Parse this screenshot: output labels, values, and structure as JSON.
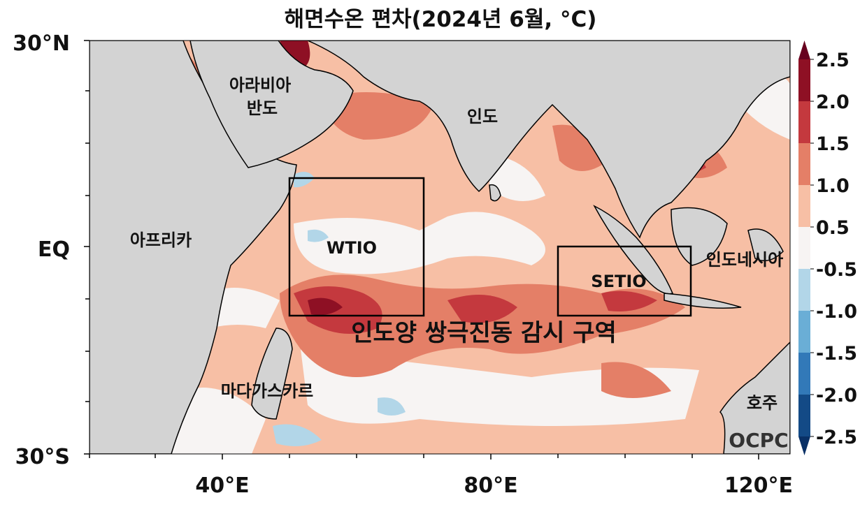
{
  "title": "해면수온 편차(2024년 6월, °C)",
  "axes": {
    "y_ticks": [
      "30°N",
      "EQ",
      "30°S"
    ],
    "x_ticks": [
      "40°E",
      "80°E",
      "120°E"
    ],
    "lon_range": [
      20,
      125
    ],
    "lat_range": [
      -30,
      30
    ]
  },
  "regions": {
    "arabia_line1": "아라비아",
    "arabia_line2": "반도",
    "india": "인도",
    "africa": "아프리카",
    "madagascar": "마다가스카르",
    "indonesia": "인도네시아",
    "australia": "호주"
  },
  "boxes": [
    {
      "label": "WTIO",
      "lon": [
        50,
        70
      ],
      "lat": [
        -10,
        10
      ]
    },
    {
      "label": "SETIO",
      "lon": [
        90,
        110
      ],
      "lat": [
        -10,
        0
      ]
    }
  ],
  "annotation": "인도양 쌍극진동 감시 구역",
  "logo": "OCPC",
  "colorbar": {
    "labels": [
      "2.5",
      "2.0",
      "1.5",
      "1.0",
      "0.5",
      "-0.5",
      "-1.0",
      "-1.5",
      "-2.0",
      "-2.5"
    ],
    "colors": [
      "#67001f",
      "#8e1024",
      "#c4393e",
      "#e47f67",
      "#f7bfa5",
      "#f7f4f3",
      "#b2d6e8",
      "#6aaed6",
      "#3279b8",
      "#134a86",
      "#093066"
    ]
  },
  "colors": {
    "land": "#d3d3d3"
  }
}
